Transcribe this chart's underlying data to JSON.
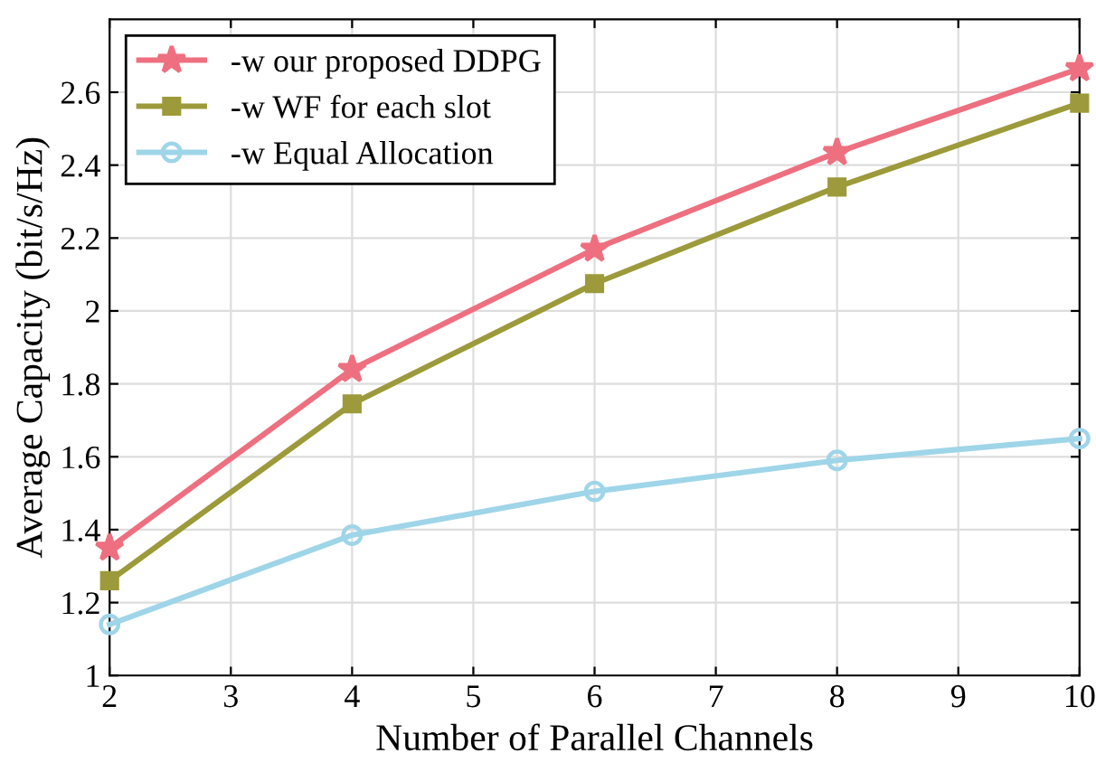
{
  "chart_data": {
    "type": "line",
    "xlabel": "Number of Parallel Channels",
    "ylabel": "Average Capacity (bit/s/Hz)",
    "x": [
      2,
      4,
      6,
      8,
      10
    ],
    "series": [
      {
        "name": "-w our proposed DDPG",
        "color": "#ee6f7f",
        "marker": "star",
        "values": [
          1.35,
          1.84,
          2.17,
          2.435,
          2.665
        ]
      },
      {
        "name": "-w WF for each slot",
        "color": "#9c9a3a",
        "marker": "square",
        "values": [
          1.26,
          1.745,
          2.075,
          2.34,
          2.57
        ]
      },
      {
        "name": "-w Equal Allocation",
        "color": "#9fd5e8",
        "marker": "circle",
        "values": [
          1.14,
          1.385,
          1.505,
          1.59,
          1.65
        ]
      }
    ],
    "xlim": [
      2,
      10
    ],
    "xticks": [
      2,
      3,
      4,
      5,
      6,
      7,
      8,
      9,
      10
    ],
    "ylim": [
      1,
      2.8
    ],
    "yticks": [
      1,
      1.2,
      1.4,
      1.6,
      1.8,
      2,
      2.2,
      2.4,
      2.6
    ],
    "grid": true,
    "legend": "top left",
    "line_style": "solid"
  }
}
